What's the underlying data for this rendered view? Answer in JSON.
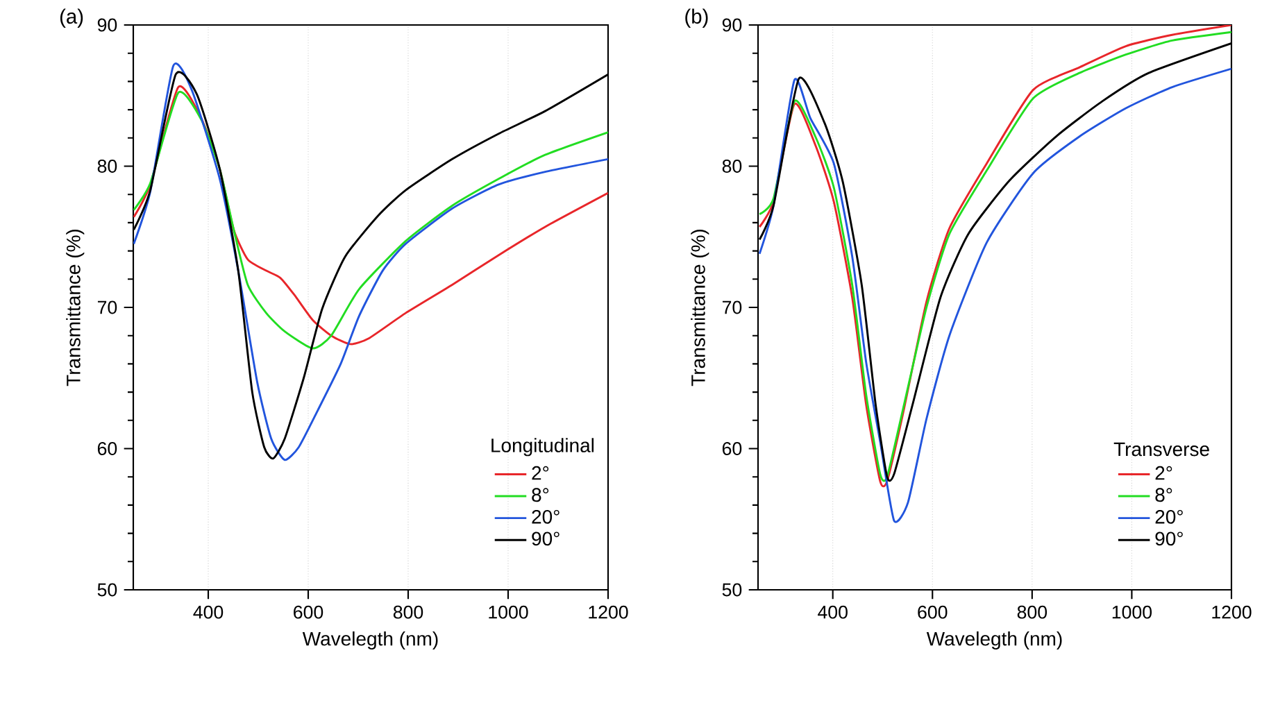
{
  "chart_data": [
    {
      "type": "line",
      "title": "(a)",
      "xlabel": "Wavelegth (nm)",
      "ylabel": "Transmittance (%)",
      "legend_title": "Longitudinal",
      "xlim": [
        250,
        1200
      ],
      "ylim": [
        50,
        90
      ],
      "xticks": [
        400,
        600,
        800,
        1000,
        1200
      ],
      "yticks": [
        50,
        60,
        70,
        80,
        90
      ],
      "grid": "x",
      "legend": "bottom right",
      "series": [
        {
          "name": "2°",
          "color": "#e8262a",
          "x": [
            251,
            284,
            340,
            386,
            423,
            451,
            479,
            516,
            544,
            572,
            609,
            646,
            684,
            721,
            795,
            888,
            981,
            1074,
            1200
          ],
          "values": [
            76.4,
            78.7,
            85.6,
            83.4,
            79.8,
            75.5,
            73.4,
            72.6,
            72.1,
            70.9,
            69.1,
            68.0,
            67.4,
            67.8,
            69.6,
            71.6,
            73.7,
            75.7,
            78.1
          ]
        },
        {
          "name": "8°",
          "color": "#22dd22",
          "x": [
            251,
            284,
            340,
            386,
            423,
            451,
            479,
            516,
            553,
            609,
            646,
            702,
            795,
            888,
            981,
            1074,
            1200
          ],
          "values": [
            76.9,
            78.8,
            85.2,
            83.3,
            79.8,
            75.5,
            71.6,
            69.6,
            68.3,
            67.1,
            68.0,
            71.3,
            74.7,
            77.2,
            79.1,
            80.8,
            82.4
          ]
        },
        {
          "name": "20°",
          "color": "#2255dd",
          "x": [
            251,
            284,
            330,
            367,
            423,
            460,
            498,
            526,
            553,
            581,
            619,
            665,
            702,
            749,
            795,
            888,
            981,
            1074,
            1200
          ],
          "values": [
            74.5,
            78.2,
            87.1,
            85.4,
            79.1,
            72.6,
            64.7,
            60.7,
            59.2,
            60.1,
            62.7,
            66.0,
            69.4,
            72.6,
            74.5,
            77.0,
            78.7,
            79.6,
            80.5
          ]
        },
        {
          "name": "90°",
          "color": "#000000",
          "x": [
            251,
            284,
            335,
            377,
            423,
            460,
            488,
            512,
            530,
            553,
            591,
            628,
            674,
            740,
            795,
            888,
            981,
            1074,
            1200
          ],
          "values": [
            75.5,
            78.3,
            86.5,
            85.1,
            79.8,
            72.6,
            64.0,
            60.1,
            59.3,
            60.7,
            65.0,
            69.9,
            73.6,
            76.5,
            78.3,
            80.5,
            82.3,
            83.9,
            86.5
          ]
        }
      ]
    },
    {
      "type": "line",
      "title": "(b)",
      "xlabel": "Wavelegth (nm)",
      "ylabel": "Transmittance (%)",
      "legend_title": "Transverse",
      "xlim": [
        250,
        1200
      ],
      "ylim": [
        50,
        90
      ],
      "xticks": [
        400,
        600,
        800,
        1000,
        1200
      ],
      "yticks": [
        50,
        60,
        70,
        80,
        90
      ],
      "grid": "x",
      "legend": "bottom right",
      "series": [
        {
          "name": "2°",
          "color": "#e8262a",
          "x": [
            253,
            281,
            323,
            365,
            402,
            439,
            467,
            495,
            509,
            541,
            588,
            634,
            709,
            802,
            895,
            988,
            1081,
            1200
          ],
          "values": [
            75.7,
            77.5,
            84.4,
            81.5,
            77.5,
            70.7,
            63.1,
            57.7,
            57.7,
            62.5,
            70.4,
            75.6,
            80.2,
            85.4,
            87.0,
            88.5,
            89.3,
            90.0
          ]
        },
        {
          "name": "8°",
          "color": "#22dd22",
          "x": [
            253,
            281,
            323,
            365,
            402,
            439,
            467,
            495,
            509,
            541,
            588,
            634,
            709,
            802,
            895,
            988,
            1081,
            1200
          ],
          "values": [
            76.6,
            77.7,
            84.6,
            82.1,
            78.5,
            71.6,
            63.8,
            58.2,
            58.0,
            62.8,
            70.0,
            75.2,
            79.7,
            84.8,
            86.6,
            87.9,
            88.9,
            89.5
          ]
        },
        {
          "name": "20°",
          "color": "#2255dd",
          "x": [
            253,
            281,
            323,
            355,
            402,
            439,
            467,
            495,
            523,
            551,
            588,
            634,
            709,
            802,
            895,
            988,
            1081,
            1200
          ],
          "values": [
            73.8,
            77.2,
            86.1,
            83.4,
            80.2,
            73.6,
            66.1,
            60.5,
            54.9,
            56.2,
            62.1,
            68.0,
            74.6,
            79.5,
            82.1,
            84.1,
            85.6,
            86.9
          ]
        },
        {
          "name": "90°",
          "color": "#000000",
          "x": [
            253,
            281,
            332,
            383,
            420,
            458,
            486,
            509,
            523,
            560,
            616,
            672,
            755,
            848,
            941,
            1034,
            1200
          ],
          "values": [
            74.8,
            77.2,
            86.2,
            83.1,
            78.9,
            71.6,
            63.1,
            58.0,
            58.2,
            63.1,
            70.7,
            75.2,
            79.0,
            82.1,
            84.6,
            86.6,
            88.7
          ]
        }
      ]
    }
  ]
}
